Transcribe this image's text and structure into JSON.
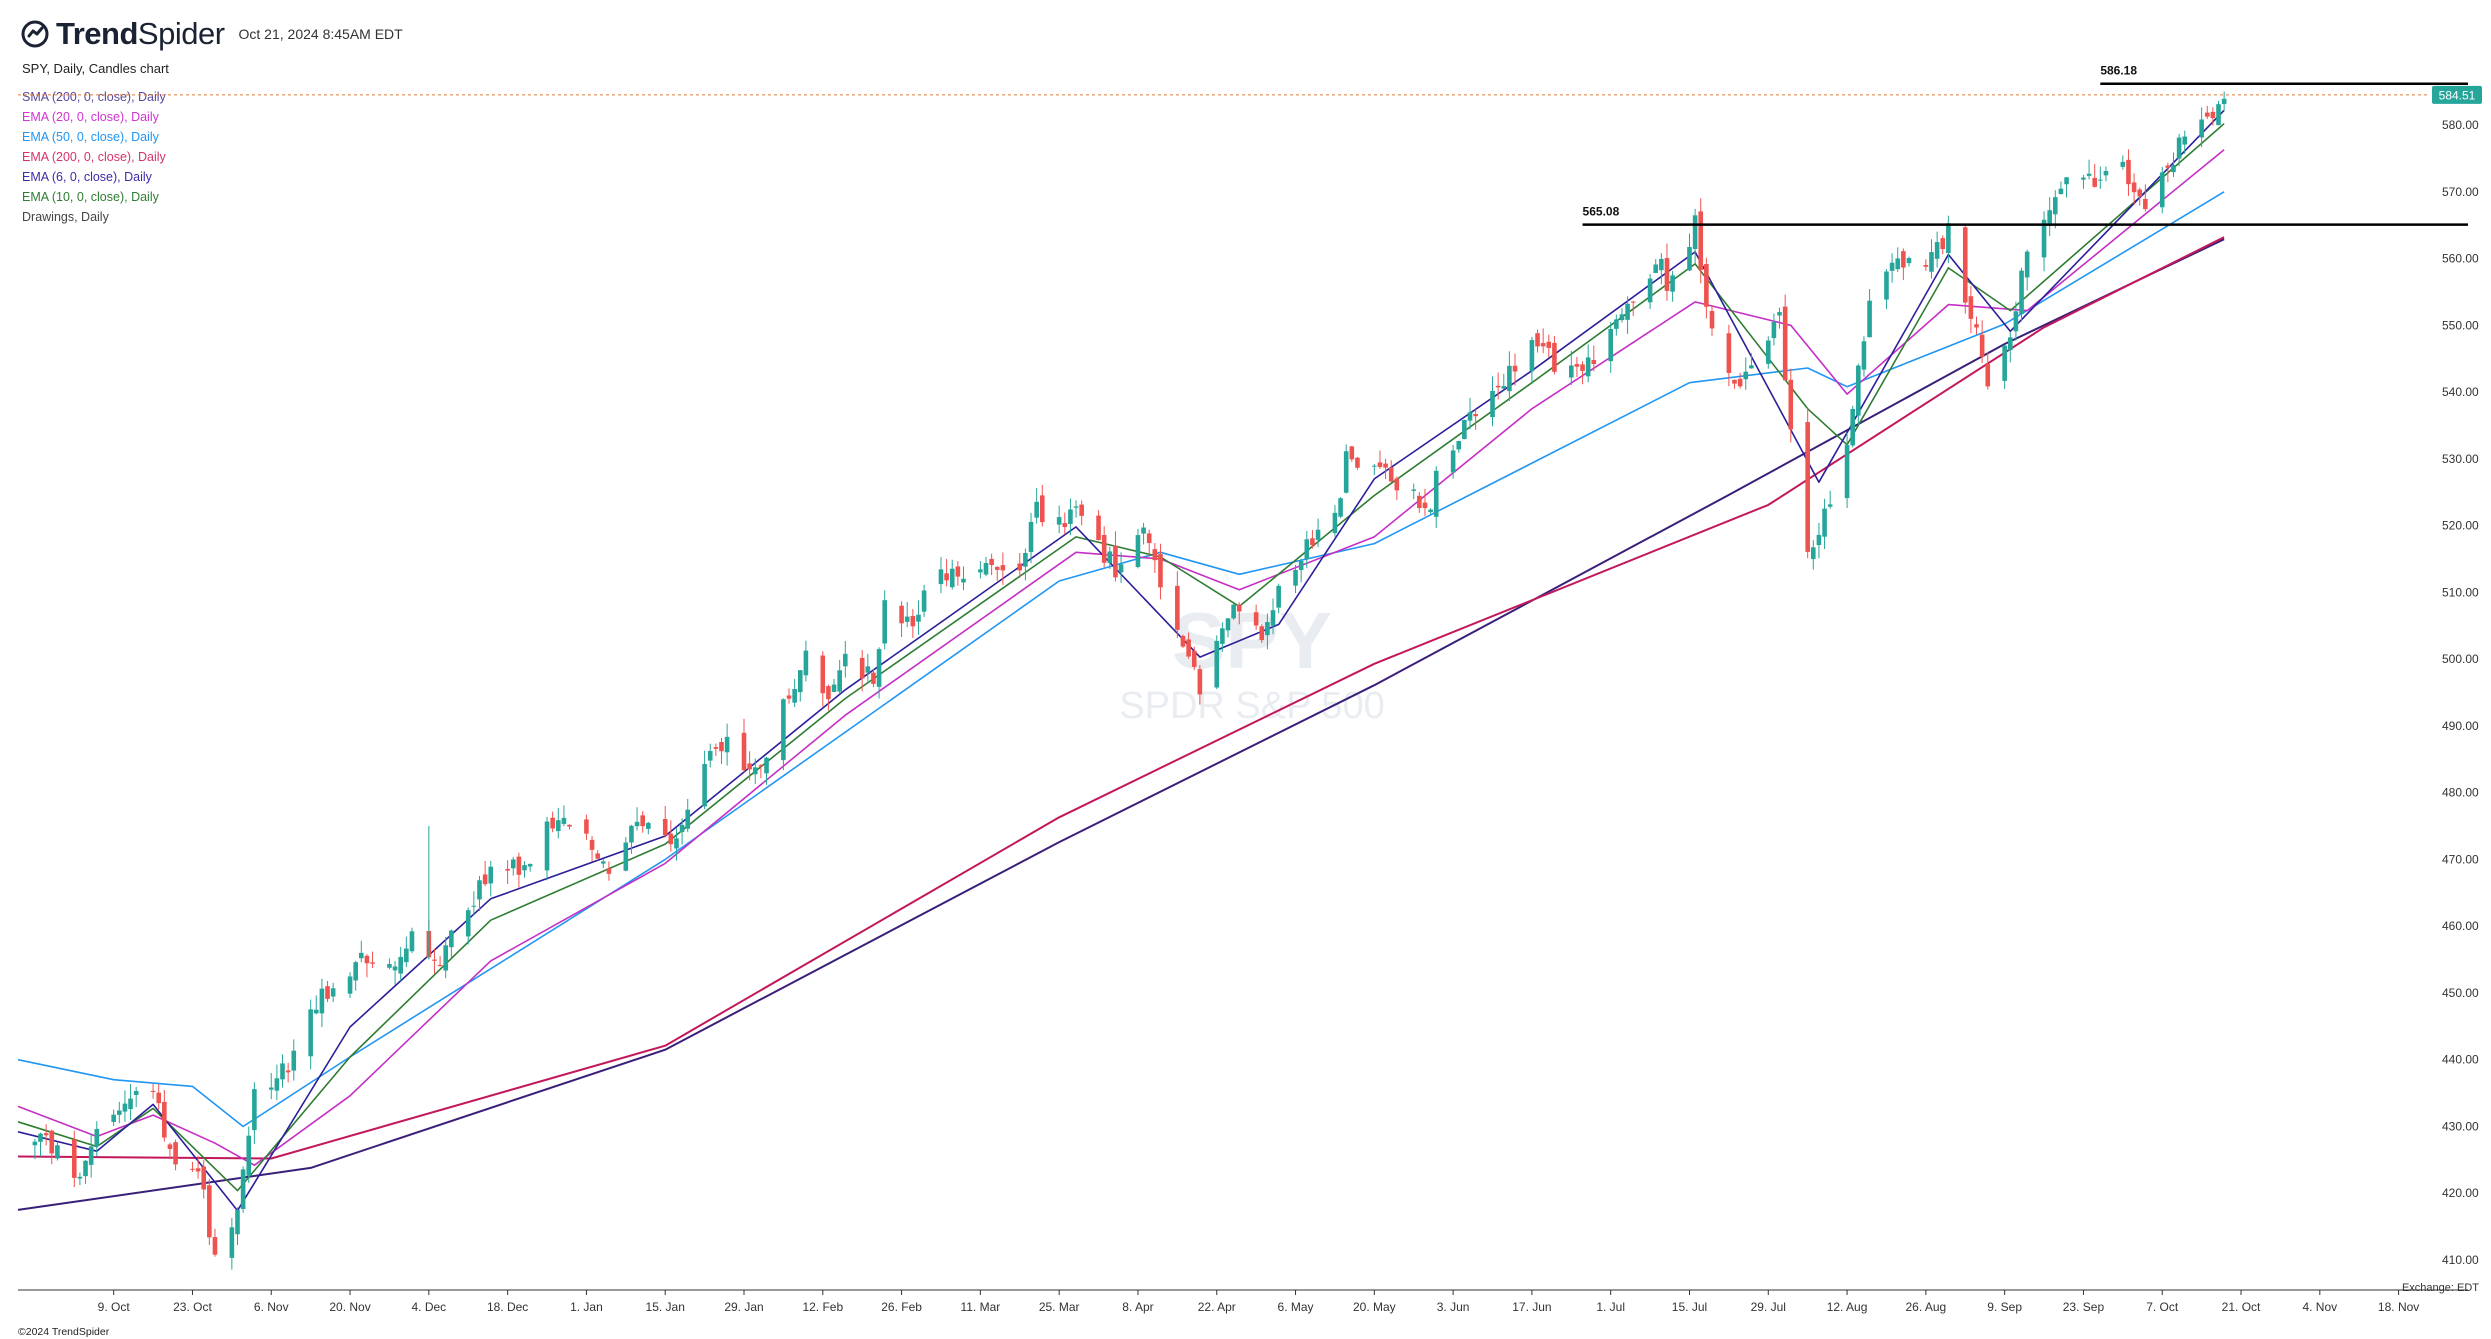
{
  "header": {
    "brand_trend": "Trend",
    "brand_spider": "Spider",
    "datetime": "Oct 21, 2024 8:45AM EDT"
  },
  "chart_title": "SPY, Daily, Candles chart",
  "legend": [
    {
      "label": "SMA (200, 0, close), Daily",
      "color": "#5b4a9e"
    },
    {
      "label": "EMA (20, 0, close), Daily",
      "color": "#d233d2"
    },
    {
      "label": "EMA (50, 0, close), Daily",
      "color": "#2196f3"
    },
    {
      "label": "EMA (200, 0, close), Daily",
      "color": "#d6336c"
    },
    {
      "label": "EMA (6, 0, close), Daily",
      "color": "#3d2ba8"
    },
    {
      "label": "EMA (10, 0, close), Daily",
      "color": "#2e7d32"
    },
    {
      "label": "Drawings, Daily",
      "color": "#444444"
    }
  ],
  "watermark": {
    "symbol": "SPY",
    "name": "SPDR S&P 500"
  },
  "footer": {
    "copyright": "©2024 TrendSpider",
    "exchange": "Exchange: EDT"
  },
  "colors": {
    "up": "#26a69a",
    "down": "#ef5350",
    "sma200": "#3a1f7a",
    "ema20": "#c52fc5",
    "ema50": "#2196f3",
    "ema200": "#c2185b",
    "ema6": "#2b1f9a",
    "ema10": "#2e7d32",
    "price_tag": "#26a69a"
  },
  "chart_data": {
    "type": "candlestick",
    "symbol": "SPY",
    "y_axis": {
      "ticks": [
        410,
        420,
        430,
        440,
        450,
        460,
        470,
        480,
        490,
        500,
        510,
        520,
        530,
        540,
        550,
        560,
        570,
        580
      ],
      "tick_labels": [
        "410.00",
        "420.00",
        "430.00",
        "440.00",
        "450.00",
        "460.00",
        "470.00",
        "480.00",
        "490.00",
        "500.00",
        "510.00",
        "520.00",
        "530.00",
        "540.00",
        "550.00",
        "560.00",
        "570.00",
        "580.00"
      ],
      "range": [
        404,
        589
      ]
    },
    "x_axis": {
      "start_date": "2023-09-22",
      "end_date": "2024-11-25",
      "ticks": [
        {
          "label": "9. Oct",
          "date": "2023-10-09"
        },
        {
          "label": "23. Oct",
          "date": "2023-10-23"
        },
        {
          "label": "6. Nov",
          "date": "2023-11-06"
        },
        {
          "label": "20. Nov",
          "date": "2023-11-20"
        },
        {
          "label": "4. Dec",
          "date": "2023-12-04"
        },
        {
          "label": "18. Dec",
          "date": "2023-12-18"
        },
        {
          "label": "1. Jan",
          "date": "2024-01-01"
        },
        {
          "label": "15. Jan",
          "date": "2024-01-15"
        },
        {
          "label": "29. Jan",
          "date": "2024-01-29"
        },
        {
          "label": "12. Feb",
          "date": "2024-02-12"
        },
        {
          "label": "26. Feb",
          "date": "2024-02-26"
        },
        {
          "label": "11. Mar",
          "date": "2024-03-11"
        },
        {
          "label": "25. Mar",
          "date": "2024-03-25"
        },
        {
          "label": "8. Apr",
          "date": "2024-04-08"
        },
        {
          "label": "22. Apr",
          "date": "2024-04-22"
        },
        {
          "label": "6. May",
          "date": "2024-05-06"
        },
        {
          "label": "20. May",
          "date": "2024-05-20"
        },
        {
          "label": "3. Jun",
          "date": "2024-06-03"
        },
        {
          "label": "17. Jun",
          "date": "2024-06-17"
        },
        {
          "label": "1. Jul",
          "date": "2024-07-01"
        },
        {
          "label": "15. Jul",
          "date": "2024-07-15"
        },
        {
          "label": "29. Jul",
          "date": "2024-07-29"
        },
        {
          "label": "12. Aug",
          "date": "2024-08-12"
        },
        {
          "label": "26. Aug",
          "date": "2024-08-26"
        },
        {
          "label": "9. Sep",
          "date": "2024-09-09"
        },
        {
          "label": "23. Sep",
          "date": "2024-09-23"
        },
        {
          "label": "7. Oct",
          "date": "2024-10-07"
        },
        {
          "label": "21. Oct",
          "date": "2024-10-21"
        },
        {
          "label": "4. Nov",
          "date": "2024-11-04"
        },
        {
          "label": "18. Nov",
          "date": "2024-11-18"
        }
      ]
    },
    "horizontal_levels": [
      {
        "label": "565.08",
        "value": 565.08,
        "from_date": "2024-06-26"
      },
      {
        "label": "586.18",
        "value": 586.18,
        "from_date": "2024-09-26"
      }
    ],
    "last_price": {
      "label": "584.51",
      "value": 584.51
    },
    "close_path": [
      [
        "2023-09-25",
        428
      ],
      [
        "2023-09-28",
        427.5
      ],
      [
        "2023-10-03",
        421.5
      ],
      [
        "2023-10-06",
        429.5
      ],
      [
        "2023-10-11",
        434.5
      ],
      [
        "2023-10-16",
        436
      ],
      [
        "2023-10-19",
        426.5
      ],
      [
        "2023-10-24",
        423.5
      ],
      [
        "2023-10-27",
        410.7
      ],
      [
        "2023-10-31",
        418.2
      ],
      [
        "2023-11-03",
        434.7
      ],
      [
        "2023-11-07",
        437
      ],
      [
        "2023-11-10",
        440.6
      ],
      [
        "2023-11-14",
        448.7
      ],
      [
        "2023-11-17",
        450.8
      ],
      [
        "2023-11-22",
        455
      ],
      [
        "2023-11-28",
        454
      ],
      [
        "2023-12-01",
        459.1
      ],
      [
        "2023-12-06",
        454.8
      ],
      [
        "2023-12-12",
        464.1
      ],
      [
        "2023-12-15",
        469.3
      ],
      [
        "2023-12-20",
        468.3
      ],
      [
        "2023-12-27",
        476.5
      ],
      [
        "2024-01-02",
        472.6
      ],
      [
        "2024-01-05",
        467.9
      ],
      [
        "2024-01-09",
        474.6
      ],
      [
        "2024-01-12",
        476.7
      ],
      [
        "2024-01-17",
        472.3
      ],
      [
        "2024-01-22",
        485.5
      ],
      [
        "2024-01-26",
        487.4
      ],
      [
        "2024-01-31",
        482.9
      ],
      [
        "2024-02-05",
        492.6
      ],
      [
        "2024-02-09",
        501.2
      ],
      [
        "2024-02-13",
        494.1
      ],
      [
        "2024-02-16",
        499.5
      ],
      [
        "2024-02-21",
        497.2
      ],
      [
        "2024-02-23",
        507.9
      ],
      [
        "2024-02-28",
        506.3
      ],
      [
        "2024-03-04",
        512.3
      ],
      [
        "2024-03-08",
        511.7
      ],
      [
        "2024-03-14",
        514
      ],
      [
        "2024-03-18",
        512.9
      ],
      [
        "2024-03-21",
        522.2
      ],
      [
        "2024-03-26",
        519.8
      ],
      [
        "2024-03-28",
        523.1
      ],
      [
        "2024-04-04",
        513.1
      ],
      [
        "2024-04-09",
        519.3
      ],
      [
        "2024-04-12",
        510.9
      ],
      [
        "2024-04-15",
        504.5
      ],
      [
        "2024-04-19",
        495.2
      ],
      [
        "2024-04-23",
        505.7
      ],
      [
        "2024-04-26",
        508.3
      ],
      [
        "2024-04-30",
        501.9
      ],
      [
        "2024-05-03",
        511.3
      ],
      [
        "2024-05-08",
        517.2
      ],
      [
        "2024-05-13",
        520.9
      ],
      [
        "2024-05-15",
        529.8
      ],
      [
        "2024-05-20",
        530.1
      ],
      [
        "2024-05-23",
        525.9
      ],
      [
        "2024-05-30",
        522.6
      ],
      [
        "2024-05-31",
        527.4
      ],
      [
        "2024-06-05",
        534.7
      ],
      [
        "2024-06-12",
        541.4
      ],
      [
        "2024-06-17",
        547.1
      ],
      [
        "2024-06-24",
        542.7
      ],
      [
        "2024-06-28",
        544.2
      ],
      [
        "2024-07-03",
        551.5
      ],
      [
        "2024-07-10",
        561.3
      ],
      [
        "2024-07-11",
        556.5
      ],
      [
        "2024-07-16",
        564.9
      ],
      [
        "2024-07-19",
        548.9
      ],
      [
        "2024-07-24",
        541.2
      ],
      [
        "2024-07-31",
        550.8
      ],
      [
        "2024-08-02",
        532.9
      ],
      [
        "2024-08-05",
        517.4
      ],
      [
        "2024-08-07",
        518.7
      ],
      [
        "2024-08-12",
        533.3
      ],
      [
        "2024-08-16",
        554.3
      ],
      [
        "2024-08-21",
        560.6
      ],
      [
        "2024-08-26",
        558.7
      ],
      [
        "2024-08-30",
        563.7
      ],
      [
        "2024-09-03",
        552.1
      ],
      [
        "2024-09-06",
        540.4
      ],
      [
        "2024-09-10",
        548.8
      ],
      [
        "2024-09-13",
        562
      ],
      [
        "2024-09-19",
        570.9
      ],
      [
        "2024-09-24",
        571.3
      ],
      [
        "2024-09-30",
        573.8
      ],
      [
        "2024-10-03",
        567.8
      ],
      [
        "2024-10-08",
        573.2
      ],
      [
        "2024-10-11",
        579.6
      ],
      [
        "2024-10-15",
        579.8
      ],
      [
        "2024-10-18",
        584.6
      ]
    ],
    "indicator_paths": {
      "sma200": [
        [
          "2023-09-22",
          417.5
        ],
        [
          "2023-11-13",
          423.8
        ],
        [
          "2024-01-15",
          441.5
        ],
        [
          "2024-03-25",
          472.6
        ],
        [
          "2024-05-20",
          496.1
        ],
        [
          "2024-07-22",
          524.6
        ],
        [
          "2024-09-09",
          547.2
        ],
        [
          "2024-10-18",
          562.9
        ]
      ],
      "ema200": [
        [
          "2023-09-22",
          425.5
        ],
        [
          "2023-11-06",
          425.2
        ],
        [
          "2024-01-15",
          442.1
        ],
        [
          "2024-03-25",
          476.3
        ],
        [
          "2024-05-20",
          499.3
        ],
        [
          "2024-07-29",
          523.1
        ],
        [
          "2024-09-16",
          549.7
        ],
        [
          "2024-10-18",
          563.2
        ]
      ],
      "ema50": [
        [
          "2023-09-22",
          440
        ],
        [
          "2023-10-09",
          437
        ],
        [
          "2023-10-23",
          436
        ],
        [
          "2023-11-01",
          430
        ],
        [
          "2023-11-20",
          440.4
        ],
        [
          "2024-01-15",
          470
        ],
        [
          "2024-03-25",
          511.7
        ],
        [
          "2024-04-12",
          516
        ],
        [
          "2024-04-26",
          512.7
        ],
        [
          "2024-05-20",
          517.3
        ],
        [
          "2024-07-15",
          541.4
        ],
        [
          "2024-08-05",
          543.6
        ],
        [
          "2024-08-12",
          540.8
        ],
        [
          "2024-09-09",
          550.2
        ],
        [
          "2024-10-18",
          570
        ]
      ],
      "ema20": [
        [
          "2023-09-22",
          433
        ],
        [
          "2023-10-06",
          428.5
        ],
        [
          "2023-10-16",
          431.7
        ],
        [
          "2023-10-27",
          427.5
        ],
        [
          "2023-11-03",
          424.2
        ],
        [
          "2023-11-20",
          434.6
        ],
        [
          "2023-12-15",
          454.8
        ],
        [
          "2024-01-15",
          469.4
        ],
        [
          "2024-02-16",
          491.6
        ],
        [
          "2024-03-28",
          516
        ],
        [
          "2024-04-12",
          515
        ],
        [
          "2024-04-26",
          510.4
        ],
        [
          "2024-05-20",
          518.3
        ],
        [
          "2024-06-17",
          537.5
        ],
        [
          "2024-07-16",
          553.5
        ],
        [
          "2024-08-02",
          550
        ],
        [
          "2024-08-12",
          539.7
        ],
        [
          "2024-08-30",
          553.1
        ],
        [
          "2024-09-13",
          552.2
        ],
        [
          "2024-10-18",
          576.3
        ]
      ],
      "ema10": [
        [
          "2023-09-22",
          430.7
        ],
        [
          "2023-10-06",
          427
        ],
        [
          "2023-10-16",
          432.7
        ],
        [
          "2023-10-31",
          420.4
        ],
        [
          "2023-11-20",
          440.4
        ],
        [
          "2023-12-15",
          460.9
        ],
        [
          "2024-01-15",
          472.3
        ],
        [
          "2024-02-16",
          494.1
        ],
        [
          "2024-03-28",
          518.3
        ],
        [
          "2024-04-12",
          515.3
        ],
        [
          "2024-04-26",
          507.9
        ],
        [
          "2024-05-20",
          524.5
        ],
        [
          "2024-06-17",
          541.4
        ],
        [
          "2024-07-16",
          559.2
        ],
        [
          "2024-08-05",
          537.5
        ],
        [
          "2024-08-12",
          532.1
        ],
        [
          "2024-08-30",
          558.6
        ],
        [
          "2024-09-10",
          552.2
        ],
        [
          "2024-10-18",
          580.2
        ]
      ],
      "ema6": [
        [
          "2023-09-22",
          429.2
        ],
        [
          "2023-10-06",
          426.3
        ],
        [
          "2023-10-16",
          433.3
        ],
        [
          "2023-10-31",
          417.4
        ],
        [
          "2023-11-20",
          444.9
        ],
        [
          "2023-12-15",
          464.1
        ],
        [
          "2024-01-15",
          473.5
        ],
        [
          "2024-02-16",
          495.4
        ],
        [
          "2024-03-28",
          519.8
        ],
        [
          "2024-04-19",
          500.3
        ],
        [
          "2024-05-03",
          505.2
        ],
        [
          "2024-05-20",
          527
        ],
        [
          "2024-06-17",
          543.2
        ],
        [
          "2024-07-16",
          561
        ],
        [
          "2024-08-07",
          526.5
        ],
        [
          "2024-08-30",
          560.6
        ],
        [
          "2024-09-10",
          549.1
        ],
        [
          "2024-10-18",
          582.2
        ]
      ]
    },
    "anomaly_wick": {
      "date": "2023-12-04",
      "high": 475,
      "low": 455
    }
  }
}
